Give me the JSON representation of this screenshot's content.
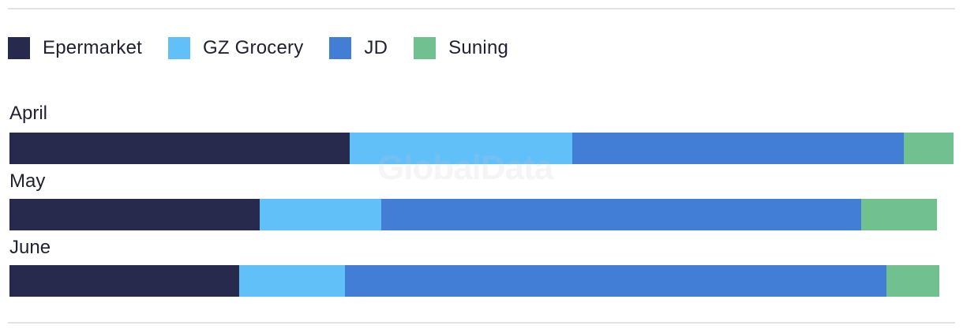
{
  "watermark": "GlobalData",
  "chart_data": {
    "type": "bar",
    "orientation": "horizontal",
    "stacked": true,
    "categories": [
      "April",
      "May",
      "June"
    ],
    "series": [
      {
        "name": "Epermarket",
        "color": "#282a4d",
        "values": [
          36.0,
          26.5,
          24.3
        ]
      },
      {
        "name": "GZ Grocery",
        "color": "#62c0f8",
        "values": [
          23.6,
          12.9,
          11.2
        ]
      },
      {
        "name": "JD",
        "color": "#437ed6",
        "values": [
          35.1,
          50.8,
          57.4
        ]
      },
      {
        "name": "Suning",
        "color": "#70c18f",
        "values": [
          5.3,
          8.0,
          5.6
        ]
      }
    ],
    "xlim": [
      0,
      100
    ],
    "legend": "top-left",
    "grid": false,
    "title": "",
    "xlabel": "",
    "ylabel": ""
  }
}
